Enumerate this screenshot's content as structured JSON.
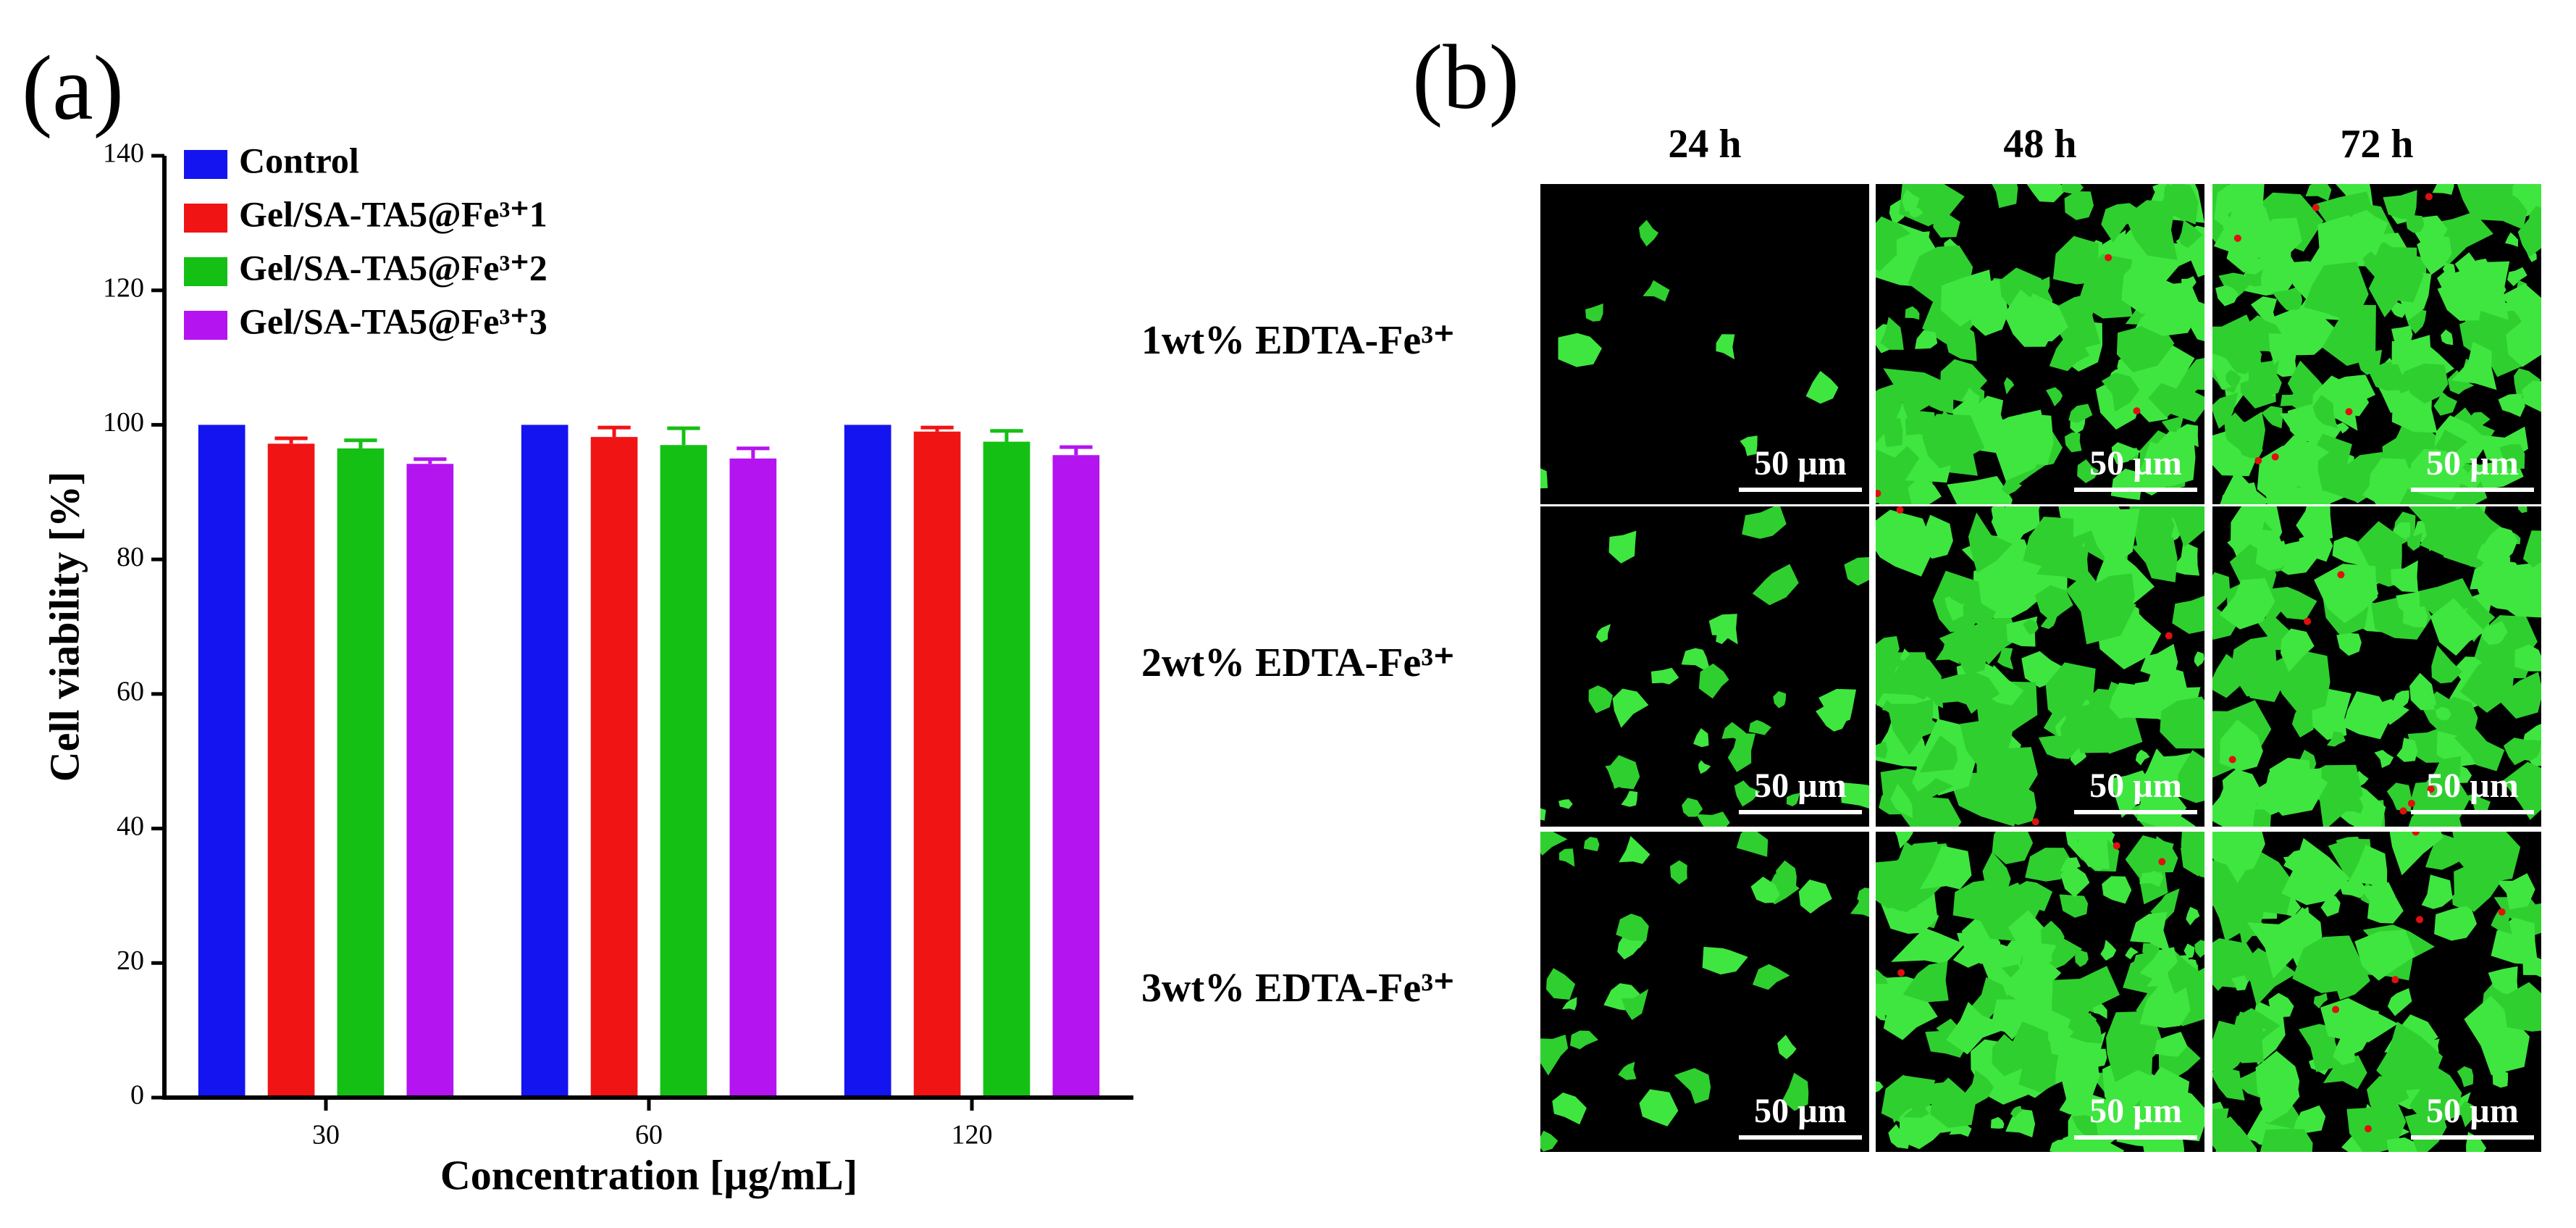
{
  "chart_data": {
    "type": "bar",
    "panel_label": "(a)",
    "xlabel": "Concentration [µg/mL]",
    "ylabel": "Cell viability [%]",
    "categories": [
      "30",
      "60",
      "120"
    ],
    "series": [
      {
        "name": "Control",
        "color": "#1414f0",
        "values": [
          100,
          100,
          100
        ]
      },
      {
        "name": "Gel/SA-TA5@Fe³⁺1",
        "color": "#f01414",
        "values": [
          97.2,
          98.2,
          99.0
        ],
        "errors": [
          0.8,
          1.4,
          0.6
        ]
      },
      {
        "name": "Gel/SA-TA5@Fe³⁺2",
        "color": "#14c014",
        "values": [
          96.5,
          97.0,
          97.5
        ],
        "errors": [
          1.2,
          2.5,
          1.6
        ]
      },
      {
        "name": "Gel/SA-TA5@Fe³⁺3",
        "color": "#b414f0",
        "values": [
          94.2,
          95.0,
          95.5
        ],
        "errors": [
          0.7,
          1.5,
          1.2
        ]
      }
    ],
    "ylim": [
      0,
      140
    ],
    "yticks": [
      0,
      20,
      40,
      60,
      80,
      100,
      120,
      140
    ],
    "legend": "upper left",
    "grid": false
  },
  "image_grid": {
    "panel_label": "(b)",
    "columns": [
      "24 h",
      "48 h",
      "72 h"
    ],
    "rows": [
      "1wt% EDTA-Fe³⁺",
      "2wt% EDTA-Fe³⁺",
      "3wt% EDTA-Fe³⁺"
    ],
    "scale_bars": [
      [
        "50 µm",
        "50 µm",
        "50 µm"
      ],
      [
        "50 µm",
        "50 µm",
        "50 µm"
      ],
      [
        "50 µm",
        "50 µm",
        "50 µm"
      ]
    ]
  }
}
